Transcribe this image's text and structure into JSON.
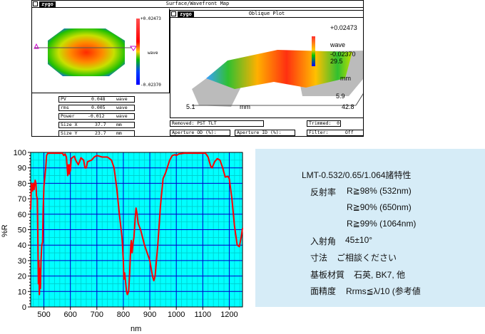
{
  "zygo": {
    "window_title": "Surface/Wavefront Map",
    "logo": "zygo",
    "map": {
      "scale_max": "+0.02473",
      "scale_min": "-0.02370",
      "unit": "wave"
    },
    "oblique": {
      "title": "Oblique Plot",
      "scale_max": "+0.02473",
      "scale_min": "-0.02370",
      "unit": "wave",
      "y_max": "29.5",
      "y_unit": "mm",
      "y_min": "5.9",
      "x_min": "5.1",
      "x_unit": "mm",
      "x_max": "42.8"
    },
    "stats": [
      {
        "label": "PV",
        "value": "0.048",
        "unit": "wave"
      },
      {
        "label": "rms",
        "value": "0.005",
        "unit": "wave"
      },
      {
        "label": "Power",
        "value": "-0.012",
        "unit": "wave"
      },
      {
        "label": "Size X",
        "value": "37.7",
        "unit": "mm"
      },
      {
        "label": "Size Y",
        "value": "23.7",
        "unit": "mm"
      }
    ],
    "removed": "Removed: PST TLT",
    "trimmed": "Trimmed:  0",
    "aperture_od": "Aperture OD (%):",
    "aperture_id": "Aperture ID (%):",
    "filter": "Filter:      Off"
  },
  "chart_data": {
    "type": "line",
    "xlabel": "nm",
    "ylabel": "%R",
    "xlim": [
      450,
      1250
    ],
    "ylim": [
      0,
      100
    ],
    "xticks": [
      500,
      600,
      700,
      800,
      900,
      1000,
      1100,
      1200
    ],
    "yticks": [
      0,
      10,
      20,
      30,
      40,
      50,
      60,
      70,
      80,
      90,
      100
    ],
    "grid": true,
    "colors": {
      "line": "#ff0000",
      "major_grid": "#0000cc",
      "minor_grid": "#00cccc",
      "background": "#00ffff"
    },
    "x": [
      450,
      453,
      457,
      460,
      463,
      467,
      470,
      472,
      475,
      477,
      479,
      481,
      483,
      485,
      487,
      489,
      492,
      495,
      497,
      500,
      503,
      507,
      510,
      515,
      550,
      570,
      575,
      580,
      585,
      590,
      593,
      596,
      598,
      600,
      603,
      610,
      615,
      620,
      630,
      640,
      650,
      655,
      660,
      665,
      680,
      690,
      700,
      720,
      740,
      755,
      765,
      775,
      785,
      795,
      800,
      802,
      805,
      808,
      812,
      815,
      820,
      824,
      828,
      830,
      833,
      837,
      840,
      845,
      848,
      852,
      856,
      865,
      880,
      900,
      910,
      915,
      920,
      930,
      940,
      950,
      960,
      975,
      985,
      995,
      1000,
      1010,
      1030,
      1110,
      1120,
      1130,
      1135,
      1145,
      1155,
      1165,
      1175,
      1185,
      1195,
      1200,
      1210,
      1220,
      1230,
      1238,
      1245,
      1250
    ],
    "y": [
      63,
      80,
      75,
      80,
      76,
      82,
      80,
      72,
      70,
      45,
      15,
      30,
      8,
      25,
      12,
      30,
      40,
      42,
      62,
      78,
      83,
      90,
      98,
      99.5,
      99.5,
      99.5,
      98,
      99,
      97,
      85,
      92,
      86,
      92,
      88,
      96,
      97,
      97.5,
      95,
      92,
      96.5,
      95,
      90,
      90,
      94,
      95,
      97,
      98,
      97,
      97,
      95,
      90,
      77,
      60,
      45,
      30,
      18,
      22,
      17,
      10,
      8,
      10,
      22,
      40,
      43,
      35,
      42,
      45,
      58,
      64,
      60,
      54,
      50,
      40,
      30,
      20,
      17,
      20,
      40,
      65,
      83,
      87,
      95,
      98,
      98.5,
      98,
      99,
      99.5,
      99.5,
      97,
      91,
      90,
      94,
      96,
      95,
      90,
      84,
      84.5,
      83,
      70,
      52,
      40,
      39,
      45,
      51
    ]
  },
  "spec": {
    "title": "LMT-0.532/0.65/1.064諸特性",
    "reflectance_label": "反射率",
    "reflectance": [
      "R≧98% (532nm)",
      "R≧90% (650nm)",
      "R≧99% (1064nm)"
    ],
    "angle_label": "入射角",
    "angle": "45±10°",
    "size_label": "寸法",
    "size": "ご相談ください",
    "substrate_label": "基板材質",
    "substrate": "石英, BK7, 他",
    "flatness_label": "面精度",
    "flatness": "Rrms≦λ/10 (参考値"
  }
}
